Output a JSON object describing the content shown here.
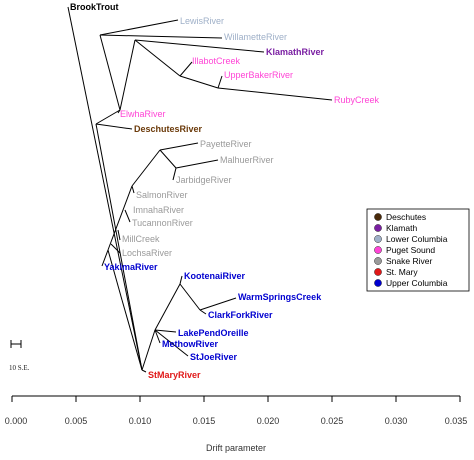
{
  "tips": [
    {
      "label": "BrookTrout",
      "color": "#000000",
      "bold": true
    },
    {
      "label": "LewisRiver",
      "color": "#9fb0c8",
      "bold": false
    },
    {
      "label": "WillametteRiver",
      "color": "#9fb0c8",
      "bold": false
    },
    {
      "label": "KlamathRiver",
      "color": "#7a1fa2",
      "bold": true
    },
    {
      "label": "IllabotCreek",
      "color": "#ff44d6",
      "bold": false
    },
    {
      "label": "UpperBakerRiver",
      "color": "#ff44d6",
      "bold": false
    },
    {
      "label": "RubyCreek",
      "color": "#ff44d6",
      "bold": false
    },
    {
      "label": "ElwhaRiver",
      "color": "#ff44d6",
      "bold": false
    },
    {
      "label": "DeschutesRiver",
      "color": "#6b3a0a",
      "bold": true
    },
    {
      "label": "PayetteRiver",
      "color": "#9a9a9a",
      "bold": false
    },
    {
      "label": "MalhuerRiver",
      "color": "#9a9a9a",
      "bold": false
    },
    {
      "label": "JarbidgeRiver",
      "color": "#9a9a9a",
      "bold": false
    },
    {
      "label": "SalmonRiver",
      "color": "#9a9a9a",
      "bold": false
    },
    {
      "label": "ImnahaRiver",
      "color": "#9a9a9a",
      "bold": false
    },
    {
      "label": "TucannonRiver",
      "color": "#9a9a9a",
      "bold": false
    },
    {
      "label": "MillCreek",
      "color": "#9a9a9a",
      "bold": false
    },
    {
      "label": "LochsaRiver",
      "color": "#9a9a9a",
      "bold": false
    },
    {
      "label": "YakimaRiver",
      "color": "#0000d0",
      "bold": true
    },
    {
      "label": "KootenaiRiver",
      "color": "#0000d0",
      "bold": true
    },
    {
      "label": "WarmSpringsCreek",
      "color": "#0000d0",
      "bold": true
    },
    {
      "label": "ClarkForkRiver",
      "color": "#0000d0",
      "bold": true
    },
    {
      "label": "LakePendOreille",
      "color": "#0000d0",
      "bold": true
    },
    {
      "label": "MethowRiver",
      "color": "#0000d0",
      "bold": true
    },
    {
      "label": "StJoeRiver",
      "color": "#0000d0",
      "bold": true
    },
    {
      "label": "StMaryRiver",
      "color": "#e01818",
      "bold": true
    }
  ],
  "legend": [
    {
      "label": "Deschutes",
      "color": "#4a2a0a"
    },
    {
      "label": "Klamath",
      "color": "#7a1fa2"
    },
    {
      "label": "Lower Columbia",
      "color": "#9fb0c8"
    },
    {
      "label": "Puget Sound",
      "color": "#ff44d6"
    },
    {
      "label": "Snake River",
      "color": "#9a9a9a"
    },
    {
      "label": "St. Mary",
      "color": "#e01818"
    },
    {
      "label": "Upper Columbia",
      "color": "#0000d0"
    }
  ],
  "axis": {
    "title": "Drift parameter",
    "min": 0.0,
    "max": 0.035,
    "ticks": [
      "0.000",
      "0.005",
      "0.010",
      "0.015",
      "0.020",
      "0.025",
      "0.030",
      "0.035"
    ]
  },
  "scale_bar": {
    "label": "10 S.E."
  }
}
